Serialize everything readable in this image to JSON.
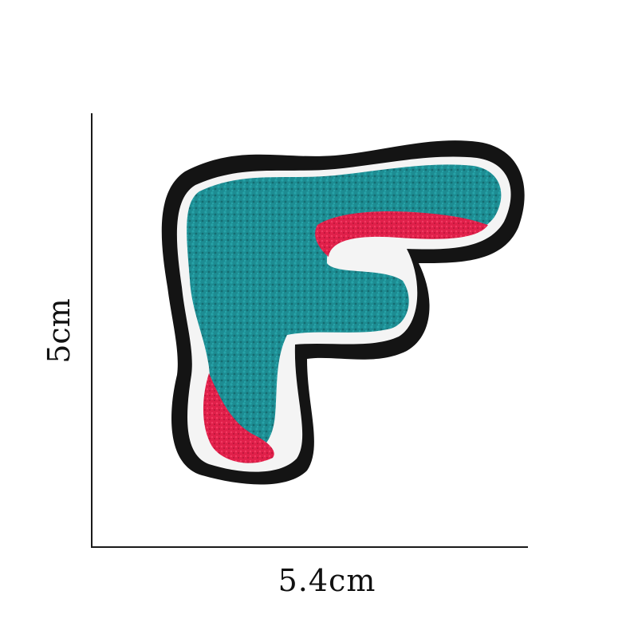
{
  "dimensions": {
    "width_label": "5.4cm",
    "height_label": "5cm"
  },
  "patch": {
    "letter_shape": "F",
    "colors": {
      "felt_border": "#141414",
      "stitching": "#f4f4f4",
      "chenille_body": "#1d8c92",
      "accent_shadow": "#e0204a"
    }
  }
}
